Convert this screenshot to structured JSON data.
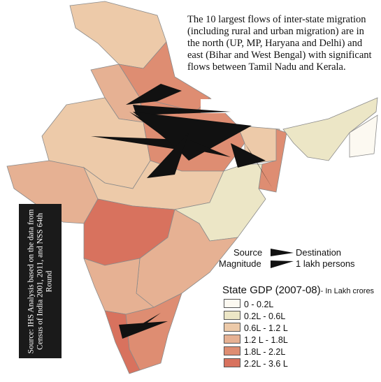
{
  "annotation": "The 10 largest flows of inter-state migration  (including rural and urban migration) are in the north (UP, MP, Haryana and Delhi) and east (Bihar and West Bengal) with significant flows between Tamil Nadu and Kerala.",
  "source": "Source: IHS Analysis based on the data from Census of India 2001, 2011, and NSS 64th Round",
  "flow_legend": {
    "source": "Source",
    "destination": "Destination",
    "magnitude": "Magnitude",
    "unit": "1 lakh persons"
  },
  "gdp_legend": {
    "title": "State GDP (2007-08)",
    "note": "- In Lakh crores",
    "items": [
      {
        "label": "0 - 0.2L",
        "color": "#fcf9f1"
      },
      {
        "label": "0.2L - 0.6L",
        "color": "#ece6c6"
      },
      {
        "label": "0.6L - 1.2 L",
        "color": "#edcaa9"
      },
      {
        "label": "1.2 L - 1.8L",
        "color": "#e6b193"
      },
      {
        "label": "1.8L - 2.2L",
        "color": "#de8d72"
      },
      {
        "label": "2.2L - 3.6 L",
        "color": "#d8725e"
      }
    ]
  }
}
